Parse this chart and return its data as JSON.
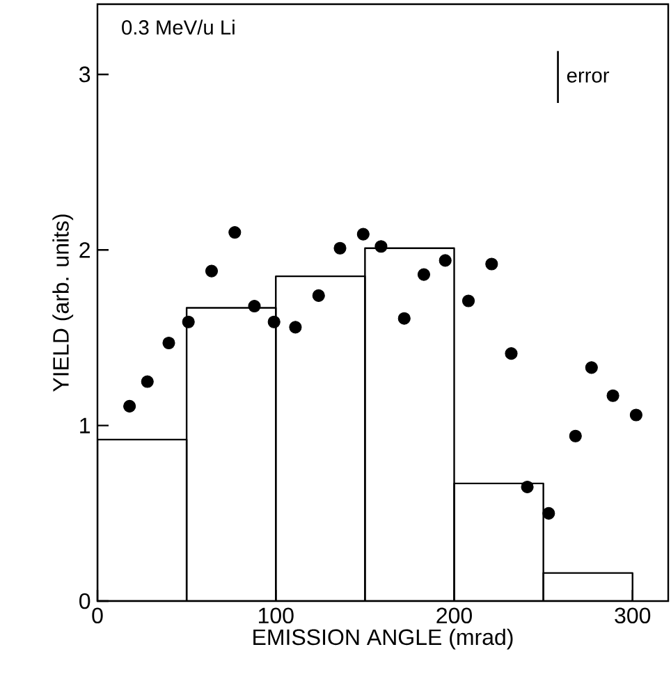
{
  "chart_data": {
    "type": "histogram",
    "title": "0.3 MeV/u  Li",
    "xlabel": "EMISSION ANGLE (mrad)",
    "ylabel": "YIELD (arb. units)",
    "annotations": [
      "error"
    ],
    "bins": [
      0,
      50,
      100,
      150,
      200,
      250,
      300
    ],
    "values": [
      0.92,
      1.67,
      1.85,
      2.01,
      0.67,
      0.16
    ],
    "color": "#000000",
    "series": [
      {
        "type": "scatter",
        "color": "#000000",
        "x": [
          18,
          28,
          40,
          51,
          64,
          77,
          88,
          99,
          111,
          124,
          136,
          149,
          159,
          172,
          183,
          195,
          208,
          221,
          232,
          241,
          253,
          268,
          277,
          289,
          302
        ],
        "values": [
          1.11,
          1.25,
          1.47,
          1.59,
          1.88,
          2.1,
          1.68,
          1.59,
          1.56,
          1.74,
          2.01,
          2.09,
          2.02,
          1.61,
          1.86,
          1.94,
          1.71,
          1.92,
          1.41,
          0.65,
          0.5,
          0.94,
          1.33,
          1.17,
          1.06
        ]
      }
    ],
    "marker": "circle",
    "xlim": [
      0,
      320
    ],
    "ylim": [
      0,
      3.4
    ],
    "xticks": [
      0,
      100,
      200,
      300
    ],
    "yticks": [
      0,
      1,
      2,
      3
    ]
  }
}
